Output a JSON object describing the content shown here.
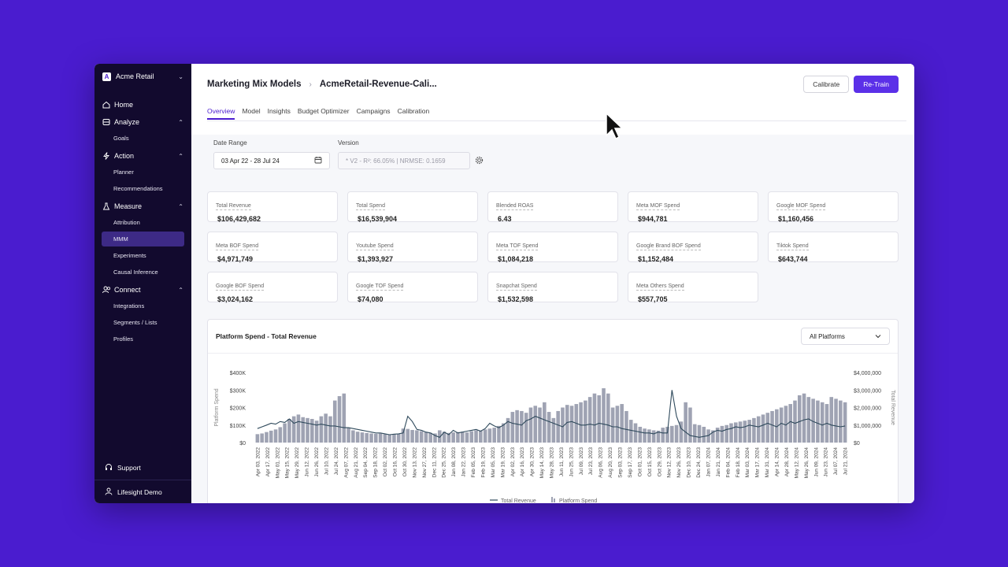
{
  "org": {
    "name": "Acme Retail",
    "badge": "A"
  },
  "sidebar": {
    "home": "Home",
    "analyze": {
      "label": "Analyze",
      "items": [
        "Goals"
      ]
    },
    "action": {
      "label": "Action",
      "items": [
        "Planner",
        "Recommendations"
      ]
    },
    "measure": {
      "label": "Measure",
      "items": [
        "Attribution",
        "MMM",
        "Experiments",
        "Causal Inference"
      ]
    },
    "connect": {
      "label": "Connect",
      "items": [
        "Integrations",
        "Segments / Lists",
        "Profiles"
      ]
    },
    "support": "Support",
    "user": "Lifesight Demo"
  },
  "header": {
    "crumb1": "Marketing Mix Models",
    "crumb2": "AcmeRetail-Revenue-Cali...",
    "calibrate": "Calibrate",
    "retrain": "Re-Train",
    "tabs": [
      "Overview",
      "Model",
      "Insights",
      "Budget Optimizer",
      "Campaigns",
      "Calibration"
    ]
  },
  "filters": {
    "date_label": "Date Range",
    "date_value": "03 Apr 22 - 28 Jul 24",
    "version_label": "Version",
    "version_value": "* V2 - R²: 66.05% | NRMSE: 0.1659"
  },
  "metrics": [
    {
      "label": "Total Revenue",
      "value": "$106,429,682"
    },
    {
      "label": "Total Spend",
      "value": "$16,539,904"
    },
    {
      "label": "Blended ROAS",
      "value": "6.43"
    },
    {
      "label": "Meta MOF Spend",
      "value": "$944,781"
    },
    {
      "label": "Google MOF Spend",
      "value": "$1,160,456"
    },
    {
      "label": "Meta BOF Spend",
      "value": "$4,971,749"
    },
    {
      "label": "Youtube Spend",
      "value": "$1,393,927"
    },
    {
      "label": "Meta TOF Spend",
      "value": "$1,084,218"
    },
    {
      "label": "Google Brand BOF Spend",
      "value": "$1,152,484"
    },
    {
      "label": "Tiktok Spend",
      "value": "$643,744"
    },
    {
      "label": "Google BOF Spend",
      "value": "$3,024,162"
    },
    {
      "label": "Google TOF Spend",
      "value": "$74,080"
    },
    {
      "label": "Snapchat Spend",
      "value": "$1,532,598"
    },
    {
      "label": "Meta Others Spend",
      "value": "$557,705"
    }
  ],
  "chart_card": {
    "title": "Platform Spend - Total Revenue",
    "platform_select": "All Platforms"
  },
  "chart_data": {
    "type": "bar",
    "title": "Platform Spend - Total Revenue",
    "ylabel": "Platform Spend",
    "y2label": "Total Revenue",
    "ylim": [
      0,
      400000
    ],
    "y2lim": [
      0,
      4000000
    ],
    "yticks": [
      "$0",
      "$100K",
      "$200K",
      "$300K",
      "$400K"
    ],
    "y2ticks": [
      "$0",
      "$1,000,000",
      "$2,000,000",
      "$3,000,000",
      "$4,000,000"
    ],
    "xtick_labels": [
      "Apr 03, 2022",
      "Apr 17, 2022",
      "May 01, 2022",
      "May 15, 2022",
      "May 29, 2022",
      "Jun 12, 2022",
      "Jun 26, 2022",
      "Jul 10, 2022",
      "Jul 24, 2022",
      "Aug 07, 2022",
      "Aug 21, 2022",
      "Sep 04, 2022",
      "Sep 18, 2022",
      "Oct 02, 2022",
      "Oct 16, 2022",
      "Oct 30, 2022",
      "Nov 13, 2022",
      "Nov 27, 2022",
      "Dec 11, 2022",
      "Dec 25, 2022",
      "Jan 08, 2023",
      "Jan 22, 2023",
      "Feb 05, 2023",
      "Feb 19, 2023",
      "Mar 05, 2023",
      "Mar 19, 2023",
      "Apr 02, 2023",
      "Apr 16, 2023",
      "Apr 30, 2023",
      "May 14, 2023",
      "May 28, 2023",
      "Jun 11, 2023",
      "Jun 25, 2023",
      "Jul 09, 2023",
      "Jul 23, 2023",
      "Aug 06, 2023",
      "Aug 20, 2023",
      "Sep 03, 2023",
      "Sep 17, 2023",
      "Oct 01, 2023",
      "Oct 15, 2023",
      "Oct 29, 2023",
      "Nov 12, 2023",
      "Nov 26, 2023",
      "Dec 10, 2023",
      "Dec 24, 2023",
      "Jan 07, 2024",
      "Jan 21, 2024",
      "Feb 04, 2024",
      "Feb 18, 2024",
      "Mar 03, 2024",
      "Mar 17, 2024",
      "Mar 31, 2024",
      "Apr 14, 2024",
      "Apr 28, 2024",
      "May 12, 2024",
      "May 26, 2024",
      "Jun 09, 2024",
      "Jun 23, 2024",
      "Jul 07, 2024",
      "Jul 21, 2024"
    ],
    "series": [
      {
        "name": "Platform Spend",
        "kind": "bar",
        "values": [
          48000,
          52000,
          60000,
          68000,
          75000,
          88000,
          110000,
          135000,
          150000,
          160000,
          145000,
          140000,
          135000,
          125000,
          150000,
          165000,
          150000,
          240000,
          265000,
          280000,
          85000,
          70000,
          62000,
          58000,
          55000,
          52000,
          50000,
          52000,
          48000,
          45000,
          48000,
          50000,
          80000,
          78000,
          72000,
          70000,
          65000,
          60000,
          55000,
          52000,
          70000,
          62000,
          55000,
          58000,
          60000,
          62000,
          58000,
          65000,
          70000,
          68000,
          75000,
          80000,
          85000,
          95000,
          110000,
          140000,
          175000,
          185000,
          180000,
          170000,
          200000,
          210000,
          200000,
          230000,
          175000,
          140000,
          180000,
          200000,
          215000,
          210000,
          220000,
          230000,
          240000,
          260000,
          280000,
          270000,
          310000,
          280000,
          200000,
          210000,
          220000,
          180000,
          130000,
          110000,
          90000,
          80000,
          75000,
          70000,
          68000,
          85000,
          90000,
          95000,
          100000,
          120000,
          230000,
          200000,
          105000,
          100000,
          90000,
          75000,
          70000,
          85000,
          95000,
          100000,
          110000,
          115000,
          120000,
          125000,
          130000,
          140000,
          150000,
          160000,
          170000,
          180000,
          190000,
          200000,
          210000,
          220000,
          240000,
          270000,
          280000,
          260000,
          250000,
          240000,
          230000,
          220000,
          260000,
          250000,
          240000,
          230000
        ]
      },
      {
        "name": "Total Revenue",
        "kind": "line",
        "values": [
          800000,
          900000,
          1000000,
          1100000,
          1050000,
          1200000,
          1150000,
          1350000,
          1100000,
          1200000,
          1150000,
          1100000,
          1050000,
          1000000,
          1050000,
          1000000,
          950000,
          950000,
          900000,
          850000,
          850000,
          800000,
          750000,
          700000,
          650000,
          600000,
          550000,
          550000,
          500000,
          450000,
          480000,
          500000,
          550000,
          1500000,
          1200000,
          750000,
          700000,
          600000,
          550000,
          400000,
          300000,
          600000,
          450000,
          700000,
          550000,
          600000,
          650000,
          700000,
          750000,
          650000,
          800000,
          1100000,
          950000,
          850000,
          1000000,
          1200000,
          1100000,
          1050000,
          1000000,
          1250000,
          1350000,
          1500000,
          1400000,
          1300000,
          1100000,
          1000000,
          900000,
          1150000,
          1200000,
          1100000,
          1000000,
          1000000,
          1050000,
          1000000,
          1100000,
          1050000,
          1000000,
          900000,
          900000,
          800000,
          750000,
          700000,
          650000,
          600000,
          550000,
          550000,
          500000,
          600000,
          550000,
          550000,
          3000000,
          1500000,
          800000,
          600000,
          400000,
          350000,
          300000,
          350000,
          400000,
          600000,
          700000,
          650000,
          750000,
          800000,
          900000,
          850000,
          900000,
          1000000,
          950000,
          900000,
          1000000,
          1100000,
          1000000,
          900000,
          1100000,
          1000000,
          1200000,
          1100000,
          1200000,
          1300000,
          1350000,
          1200000,
          1100000,
          1000000,
          1100000,
          1000000,
          950000,
          900000,
          950000
        ]
      }
    ],
    "legend": [
      "Total Revenue",
      "Platform Spend"
    ],
    "legend_position": "bottom"
  }
}
